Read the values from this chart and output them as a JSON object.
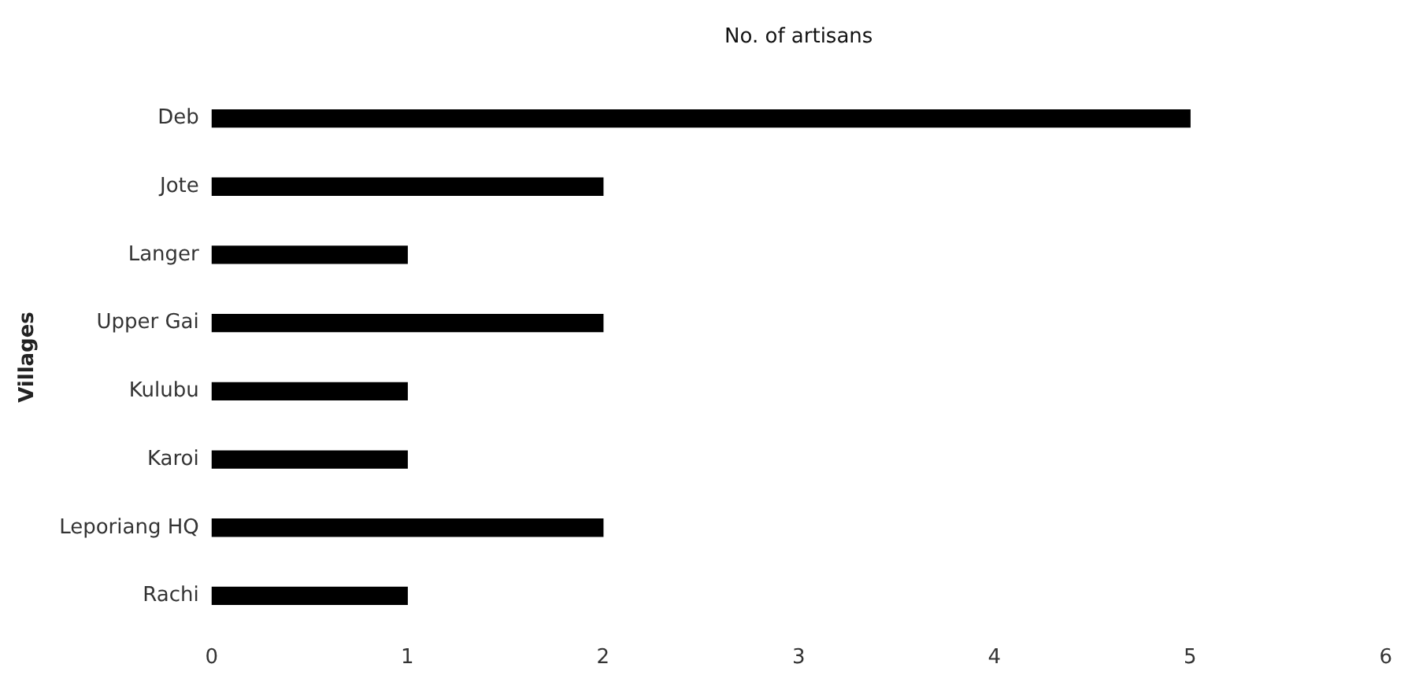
{
  "chart_data": {
    "type": "bar",
    "orientation": "horizontal",
    "title": "No. of artisans",
    "ylabel": "Villages",
    "categories": [
      "Deb",
      "Jote",
      "Langer",
      "Upper Gai",
      "Kulubu",
      "Karoi",
      "Leporiang HQ",
      "Rachi"
    ],
    "values": [
      5,
      2,
      1,
      2,
      1,
      1,
      2,
      1
    ],
    "color": "#000000",
    "xlim": [
      0,
      6
    ],
    "xticks": [
      0,
      1,
      2,
      3,
      4,
      5,
      6
    ],
    "grid": false,
    "legend": false
  }
}
